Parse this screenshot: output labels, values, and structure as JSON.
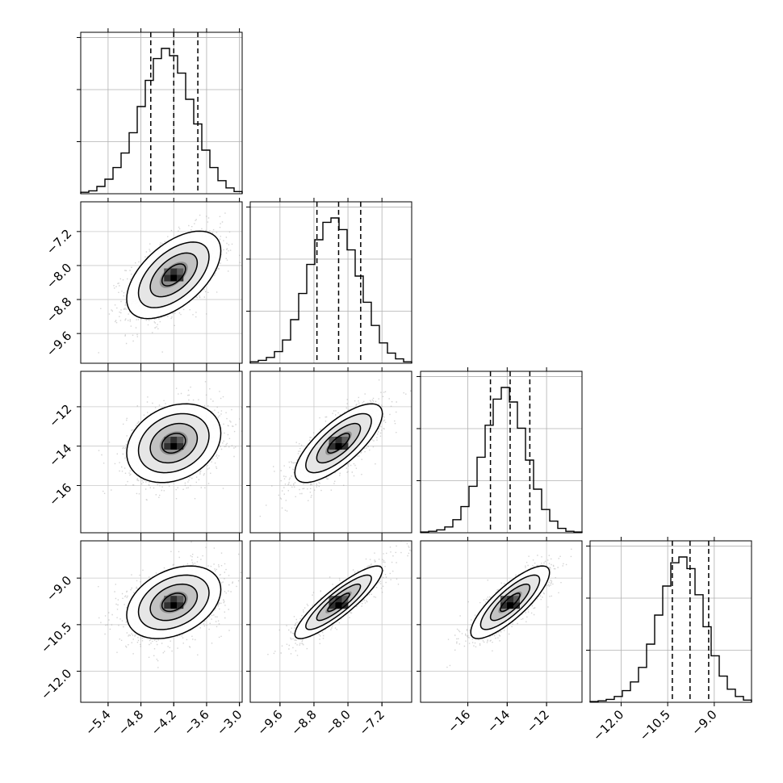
{
  "chart_data": {
    "type": "corner",
    "parameters": [
      {
        "index": 0,
        "range": [
          -5.9,
          -2.95
        ],
        "ticks": [
          "-5.4",
          "-4.8",
          "-4.2",
          "-3.6",
          "-3.0"
        ],
        "tick_values": [
          -5.4,
          -4.8,
          -4.2,
          -3.6,
          -3.0
        ],
        "median": -4.2,
        "q16": -4.62,
        "q84": -3.76
      },
      {
        "index": 1,
        "range": [
          -10.3,
          -6.5
        ],
        "ticks": [
          "-9.6",
          "-8.8",
          "-8.0",
          "-7.2"
        ],
        "tick_values": [
          -9.6,
          -8.8,
          -8.0,
          -7.2
        ],
        "median": -8.22,
        "q16": -8.73,
        "q84": -7.7
      },
      {
        "index": 2,
        "range": [
          -18.4,
          -10.2
        ],
        "ticks": [
          "-16",
          "-14",
          "-12"
        ],
        "tick_values": [
          -16,
          -14,
          -12
        ],
        "median": -13.85,
        "q16": -14.85,
        "q84": -12.85
      },
      {
        "index": 3,
        "range": [
          -13.0,
          -7.8
        ],
        "ticks": [
          "-12.0",
          "-10.5",
          "-9.0"
        ],
        "tick_values": [
          -12.0,
          -10.5,
          -9.0
        ],
        "median": -9.78,
        "q16": -10.35,
        "q84": -9.18
      }
    ],
    "histograms": [
      {
        "bins": 20,
        "counts": [
          0.01,
          0.02,
          0.05,
          0.1,
          0.18,
          0.28,
          0.42,
          0.6,
          0.78,
          0.93,
          1.0,
          0.95,
          0.83,
          0.65,
          0.48,
          0.3,
          0.18,
          0.09,
          0.04,
          0.015
        ]
      },
      {
        "bins": 20,
        "counts": [
          0.01,
          0.02,
          0.04,
          0.08,
          0.16,
          0.3,
          0.48,
          0.68,
          0.85,
          0.97,
          1.0,
          0.92,
          0.78,
          0.6,
          0.42,
          0.26,
          0.14,
          0.07,
          0.03,
          0.01
        ]
      },
      {
        "bins": 20,
        "counts": [
          0.005,
          0.01,
          0.02,
          0.04,
          0.09,
          0.18,
          0.32,
          0.52,
          0.74,
          0.92,
          1.0,
          0.9,
          0.72,
          0.5,
          0.3,
          0.16,
          0.08,
          0.03,
          0.01,
          0.005
        ]
      },
      {
        "bins": 20,
        "counts": [
          0.005,
          0.01,
          0.02,
          0.04,
          0.08,
          0.14,
          0.24,
          0.4,
          0.6,
          0.8,
          0.96,
          1.0,
          0.92,
          0.74,
          0.52,
          0.32,
          0.18,
          0.09,
          0.04,
          0.015
        ]
      }
    ],
    "pairs": [
      {
        "x": 0,
        "y": 1,
        "correlation": 0.55
      },
      {
        "x": 0,
        "y": 2,
        "correlation": 0.25
      },
      {
        "x": 1,
        "y": 2,
        "correlation": 0.75
      },
      {
        "x": 0,
        "y": 3,
        "correlation": 0.35
      },
      {
        "x": 1,
        "y": 3,
        "correlation": 0.88
      },
      {
        "x": 2,
        "y": 3,
        "correlation": 0.82
      }
    ],
    "grid": true,
    "colors": {
      "contour": "#000000",
      "scatter": "#9e9e9e",
      "quantile": "#000000"
    }
  }
}
